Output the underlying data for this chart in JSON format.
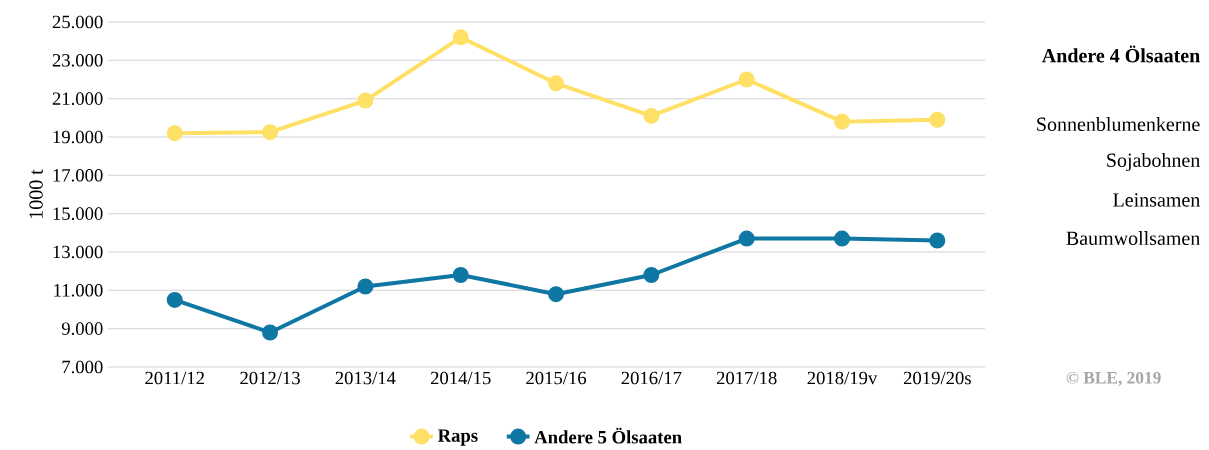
{
  "chart_data": {
    "type": "line",
    "ylabel": "1000 t",
    "categories": [
      "2011/12",
      "2012/13",
      "2013/14",
      "2014/15",
      "2015/16",
      "2016/17",
      "2017/18",
      "2018/19v",
      "2019/20s"
    ],
    "series": [
      {
        "name": "Raps",
        "color": "#ffe066",
        "values": [
          19200,
          19250,
          20900,
          24200,
          21800,
          20100,
          22000,
          19800,
          19900
        ]
      },
      {
        "name": "Andere 5 Ölsaaten",
        "color": "#0f77a3",
        "values": [
          10500,
          8800,
          11200,
          11800,
          10800,
          11800,
          13700,
          13700,
          13600
        ]
      }
    ],
    "ylim": [
      7000,
      25000
    ],
    "yticks": [
      {
        "value": 7000,
        "label": "7.000"
      },
      {
        "value": 9000,
        "label": "9.000"
      },
      {
        "value": 11000,
        "label": "11.000"
      },
      {
        "value": 13000,
        "label": "13.000"
      },
      {
        "value": 15000,
        "label": "15.000"
      },
      {
        "value": 17000,
        "label": "17.000"
      },
      {
        "value": 19000,
        "label": "19.000"
      },
      {
        "value": 21000,
        "label": "21.000"
      },
      {
        "value": 23000,
        "label": "23.000"
      },
      {
        "value": 25000,
        "label": "25.000"
      }
    ],
    "grid": "y",
    "legend": "bottom",
    "marker": "circle",
    "line_style": "solid",
    "annotations": [
      "Andere 4 Ölsaaten",
      "Sonnenblumenkerne",
      "Sojabohnen",
      "Leinsamen",
      "Baumwollsamen",
      "© BLE, 2019"
    ]
  }
}
